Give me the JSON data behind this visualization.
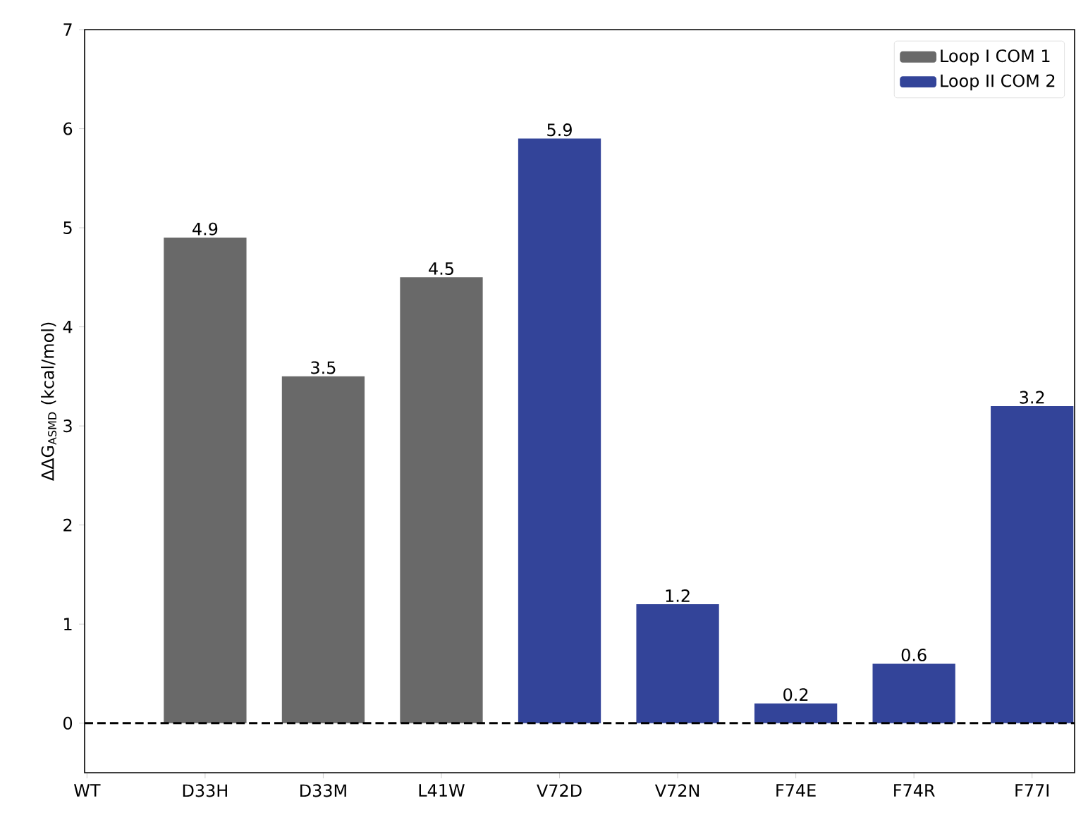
{
  "chart_data": {
    "type": "bar",
    "ylabel": "ΔΔG$_{ASMD}$ (kcal/mol)",
    "categories": [
      "WT",
      "D33H",
      "D33M",
      "L41W",
      "V72D",
      "V72N",
      "F74E",
      "F74R",
      "F77I"
    ],
    "series": [
      {
        "name": "Loop I COM 1",
        "color": "#696969",
        "values": [
          null,
          4.9,
          3.5,
          4.5,
          null,
          null,
          null,
          null,
          null
        ]
      },
      {
        "name": "Loop II COM 2",
        "color": "#334499",
        "values": [
          null,
          null,
          null,
          null,
          5.9,
          1.2,
          0.2,
          0.6,
          3.2
        ]
      }
    ],
    "ylim": [
      -0.5,
      7
    ],
    "yticks": [
      0,
      1,
      2,
      3,
      4,
      5,
      6,
      7
    ],
    "ref_lines": [
      {
        "axis": "y",
        "value": 0,
        "color": "#000000",
        "line_style": "dashed"
      }
    ],
    "data_labels": true,
    "legend": "top right"
  }
}
